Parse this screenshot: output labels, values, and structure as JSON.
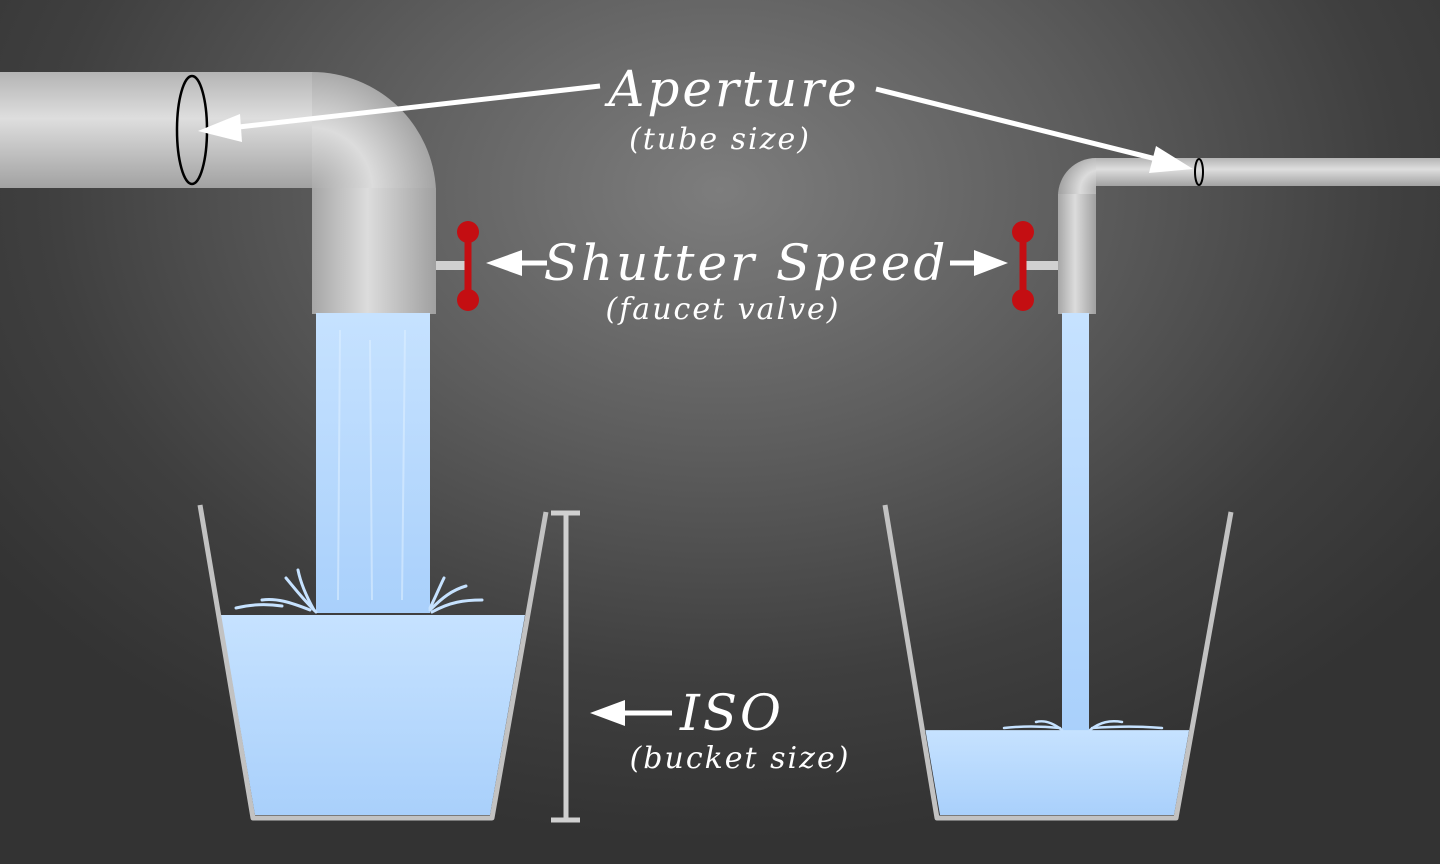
{
  "labels": {
    "aperture": {
      "title": "Aperture",
      "subtitle": "(tube size)"
    },
    "shutter_speed": {
      "title": "Shutter Speed",
      "subtitle": "(faucet valve)"
    },
    "iso": {
      "title": "ISO",
      "subtitle": "(bucket size)"
    }
  },
  "colors": {
    "water": "#bcdcff",
    "pipe": "#c4c4c4",
    "valve": "#c40e12",
    "annotation": "#ffffff"
  },
  "buckets": {
    "left_fill_fraction": 0.66,
    "right_fill_fraction": 0.28
  }
}
